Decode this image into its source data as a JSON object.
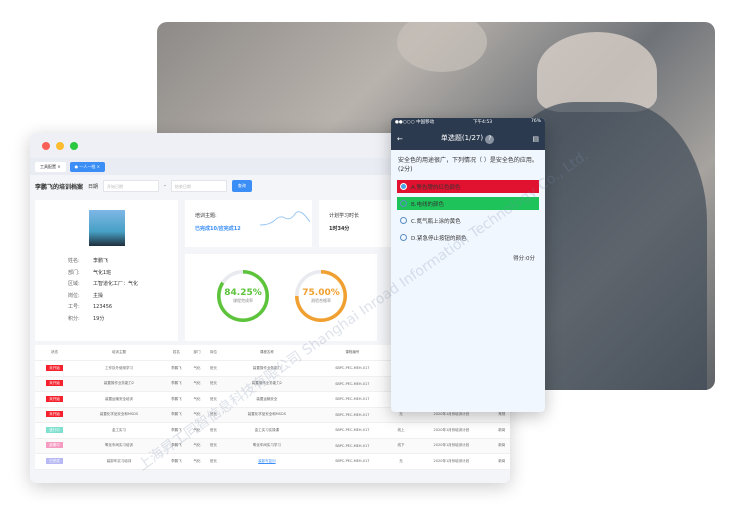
{
  "desktop": {
    "tabs": [
      {
        "label": "工具配置"
      },
      {
        "label": "一人一档"
      }
    ],
    "page_title": "李鹏飞的培训档案",
    "date_label": "日期",
    "start_placeholder": "开始日期",
    "end_placeholder": "结束日期",
    "search_label": "查询",
    "profile": {
      "fields": [
        {
          "k": "姓名:",
          "v": "李鹏飞"
        },
        {
          "k": "部门:",
          "v": "气化1班"
        },
        {
          "k": "区域:",
          "v": "工智道化工厂：气化"
        },
        {
          "k": "岗位:",
          "v": "主操"
        },
        {
          "k": "工号:",
          "v": "123456"
        },
        {
          "k": "积分:",
          "v": "19分"
        }
      ]
    },
    "training_topic_label": "培训主题:",
    "training_topic_value": "已完成10/应完成12",
    "plan_time_label": "计划学习时长",
    "plan_time_value": "1时34分",
    "rings": [
      {
        "value": "84.25%",
        "label": "课程完成率",
        "color": "#5cc33b",
        "pct": 84.25
      },
      {
        "value": "75.00%",
        "label": "测验合格率",
        "color": "#f0a030",
        "pct": 75
      }
    ],
    "table": {
      "headers": [
        "状态",
        "培训主题",
        "姓名",
        "部门",
        "岗位",
        "课程名称",
        "课程编号",
        "方式",
        "计划",
        "类型"
      ],
      "rows": [
        {
          "status": "未开始",
          "color": "#f5222d",
          "c": [
            "工作队外使用学习",
            "李鹏飞",
            "气化",
            "班长",
            "装置操作业务能力",
            "SBPC-PEC-MEH-017",
            "",
            "",
            ""
          ]
        },
        {
          "status": "未开始",
          "color": "#f5222d",
          "c": [
            "装置操作业务能力2",
            "李鹏飞",
            "气化",
            "班长",
            "装置操作业务能力2",
            "SBPC-PEC-MEH-017",
            "",
            "",
            ""
          ]
        },
        {
          "status": "未开始",
          "color": "#f5222d",
          "c": [
            "装置运输安全培训",
            "李鹏飞",
            "气化",
            "班长",
            "装置运输安全",
            "SBPC-PEC-MEH-017",
            "",
            "",
            ""
          ]
        },
        {
          "status": "未开始",
          "color": "#f5222d",
          "c": [
            "装置化学品安全和MSDS",
            "李鹏飞",
            "气化",
            "班长",
            "装置化学品安全和MSDS",
            "SBPC-PEC-MEH-017",
            "无",
            "2020年1月份培训计划",
            "常规"
          ]
        },
        {
          "status": "进行中",
          "color": "#7fe0d0",
          "c": [
            "金工实习",
            "李鹏飞",
            "气化",
            "班长",
            "金工实习实操课",
            "SBPC-PEC-MEH-017",
            "线上",
            "2020年1月份培训计划",
            "新岗"
          ]
        },
        {
          "status": "延期中",
          "color": "#f59ac0",
          "c": [
            "氧化车间实习培训",
            "李鹏飞",
            "气化",
            "班长",
            "氧化车间实习学习",
            "SBPC-PEC-MEH-017",
            "线下",
            "2020年1月份培训计划",
            "新岗"
          ]
        },
        {
          "status": "已完成",
          "color": "#b8b8f5",
          "c": [
            "装卸车实习培训",
            "李鹏飞",
            "气化",
            "班长",
            "装卸车复训",
            "SBPC-PEC-MEH-017",
            "无",
            "2020年1月份培训计划",
            "新岗"
          ]
        }
      ]
    }
  },
  "phone": {
    "carrier": "●●○○○ 中国移动",
    "time": "下午4:53",
    "battery": "76%",
    "title": "单选题(1/27)",
    "question": "安全色的用途很广，下列情况（ ）是安全色的应用。(2分)",
    "options": [
      {
        "label": "A.警告牌的红色颜色",
        "bg": "#e0122f"
      },
      {
        "label": "B.电线的颜色",
        "bg": "#1ec45a"
      },
      {
        "label": "C.氮气瓶上涂的黄色",
        "bg": ""
      },
      {
        "label": "D.紧急停止按钮的颜色",
        "bg": ""
      }
    ],
    "score": "得分:0分"
  },
  "watermark": "上海昇工同智信息科技有限公司 Shanghai Inroad Information Technology Co., Ltd."
}
